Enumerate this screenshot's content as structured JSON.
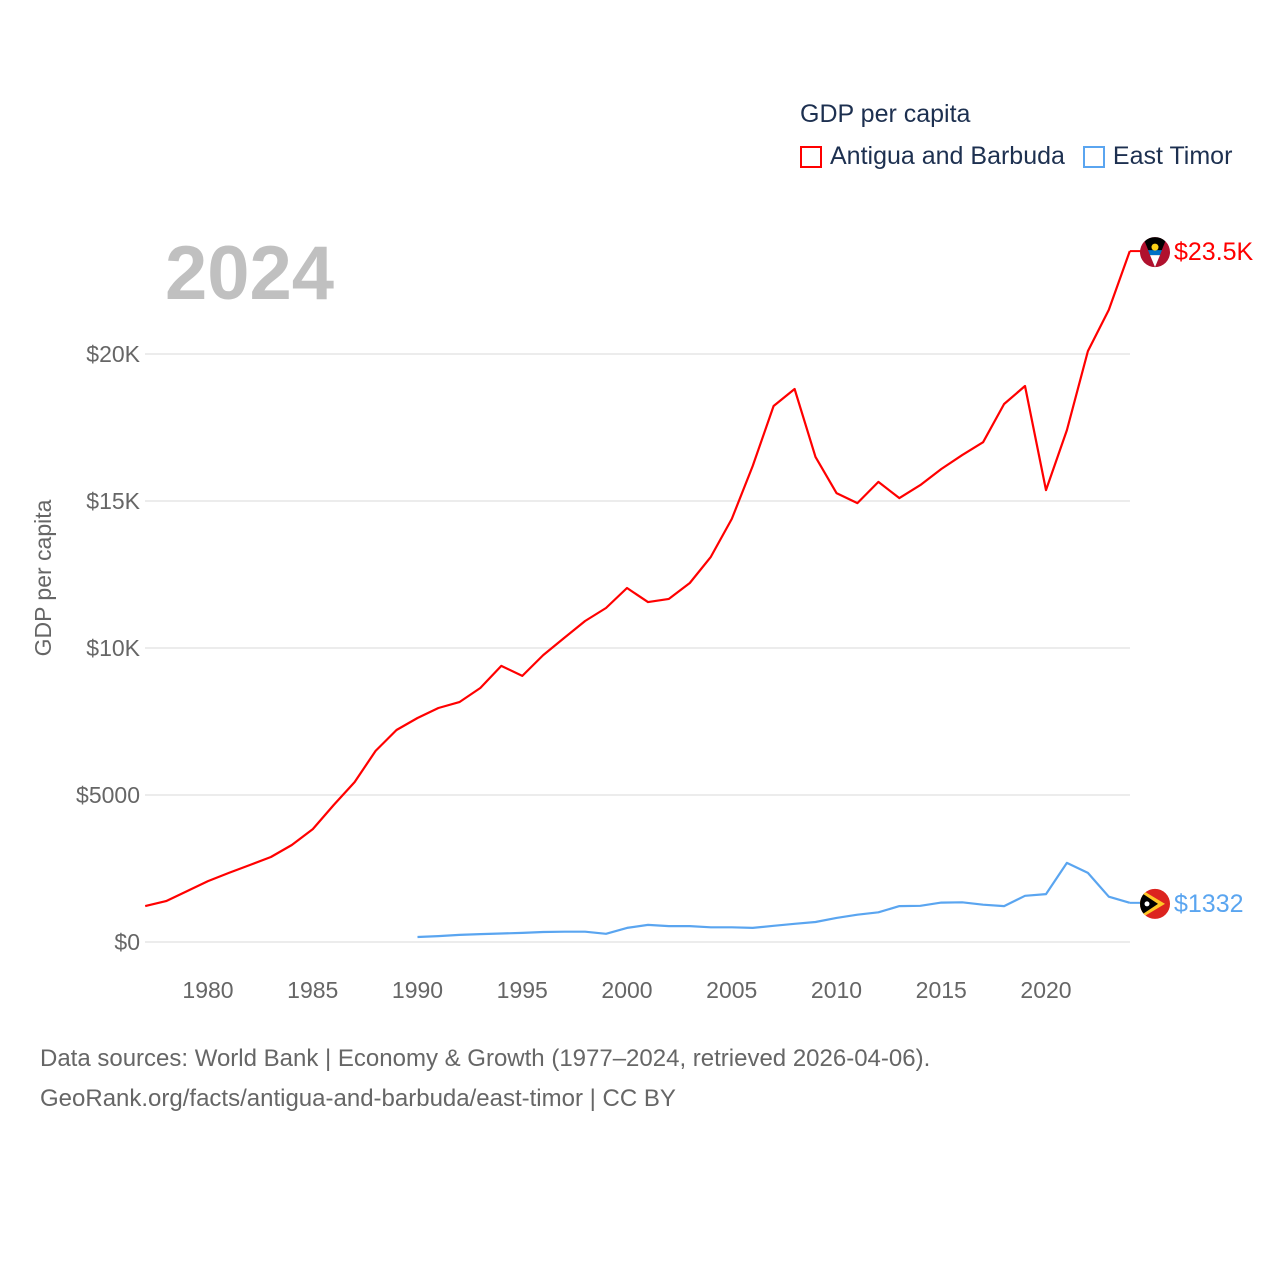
{
  "chart_data": {
    "type": "line",
    "legend_title": "GDP per capita",
    "ylabel": "GDP per capita",
    "xlabel": "",
    "year_label": "2024",
    "xlim": [
      1977,
      2024
    ],
    "ylim": [
      0,
      24000
    ],
    "x_ticks": [
      "1980",
      "1985",
      "1990",
      "1995",
      "2000",
      "2005",
      "2010",
      "2015",
      "2020"
    ],
    "y_ticks": [
      {
        "value": 0,
        "label": "$0"
      },
      {
        "value": 5000,
        "label": "$5000"
      },
      {
        "value": 10000,
        "label": "$10K"
      },
      {
        "value": 15000,
        "label": "$15K"
      },
      {
        "value": 20000,
        "label": "$20K"
      }
    ],
    "legend_position": "top-right",
    "grid": true,
    "series": [
      {
        "name": "Antigua and Barbuda",
        "color": "#ff0000",
        "end_label": "$23.5K",
        "start_year": 1977,
        "values": [
          1220,
          1390,
          1730,
          2070,
          2350,
          2620,
          2890,
          3300,
          3840,
          4660,
          5440,
          6500,
          7210,
          7620,
          7960,
          8160,
          8640,
          9390,
          9050,
          9760,
          10340,
          10920,
          11360,
          12040,
          11560,
          11670,
          12210,
          13100,
          14390,
          16190,
          18230,
          18810,
          16500,
          15270,
          14930,
          15650,
          15100,
          15540,
          16090,
          16560,
          17000,
          18300,
          18910,
          15370,
          17410,
          20100,
          21500,
          23500
        ]
      },
      {
        "name": "East Timor",
        "color": "#5aa5f0",
        "end_label": "$1332",
        "start_year": 1990,
        "values": [
          170,
          200,
          240,
          270,
          290,
          310,
          340,
          350,
          350,
          280,
          480,
          580,
          540,
          540,
          500,
          500,
          480,
          550,
          620,
          680,
          820,
          930,
          1010,
          1220,
          1230,
          1340,
          1350,
          1270,
          1220,
          1570,
          1630,
          2690,
          2350,
          1540,
          1332
        ]
      }
    ]
  },
  "footer": {
    "line1": "Data sources: World Bank | Economy & Growth (1977–2024, retrieved 2026-04-06).",
    "line2": "GeoRank.org/facts/antigua-and-barbuda/east-timor | CC BY"
  }
}
